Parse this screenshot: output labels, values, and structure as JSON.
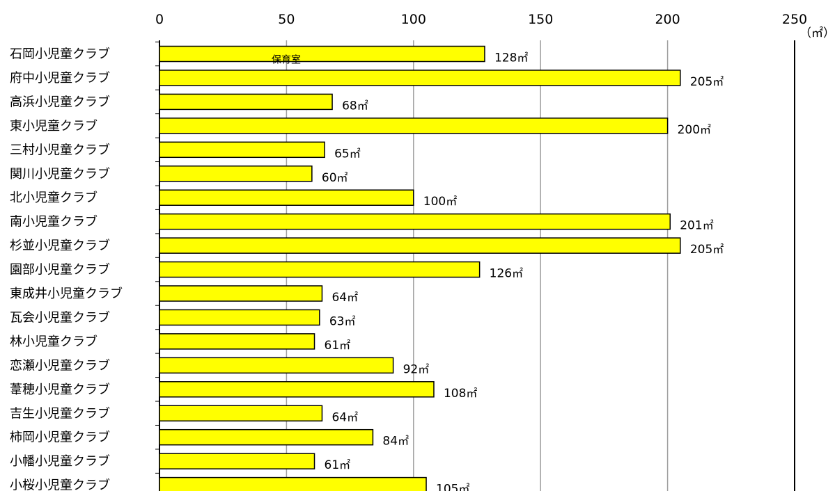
{
  "chart_data": {
    "type": "bar",
    "orientation": "horizontal",
    "categories": [
      "石岡小児童クラブ",
      "府中小児童クラブ",
      "高浜小児童クラブ",
      "東小児童クラブ",
      "三村小児童クラブ",
      "関川小児童クラブ",
      "北小児童クラブ",
      "南小児童クラブ",
      "杉並小児童クラブ",
      "園部小児童クラブ",
      "東成井小児童クラブ",
      "瓦会小児童クラブ",
      "林小児童クラブ",
      "恋瀬小児童クラブ",
      "葦穂小児童クラブ",
      "吉生小児童クラブ",
      "柿岡小児童クラブ",
      "小幡小児童クラブ",
      "小桜小児童クラブ"
    ],
    "values": [
      128,
      205,
      68,
      200,
      65,
      60,
      100,
      201,
      205,
      126,
      64,
      63,
      61,
      92,
      108,
      64,
      84,
      61,
      105
    ],
    "value_unit": "㎡",
    "axis_unit_label": "（㎡）",
    "xlim": [
      0,
      250
    ],
    "xticks": [
      "0",
      "50",
      "100",
      "150",
      "200",
      "250"
    ],
    "annotation": {
      "text": "保育室",
      "category": "石岡小児童クラブ"
    },
    "grid": true,
    "bar_color": "#ffff00",
    "bar_border_color": "#000000",
    "grid_color": "#a0a0a0"
  }
}
